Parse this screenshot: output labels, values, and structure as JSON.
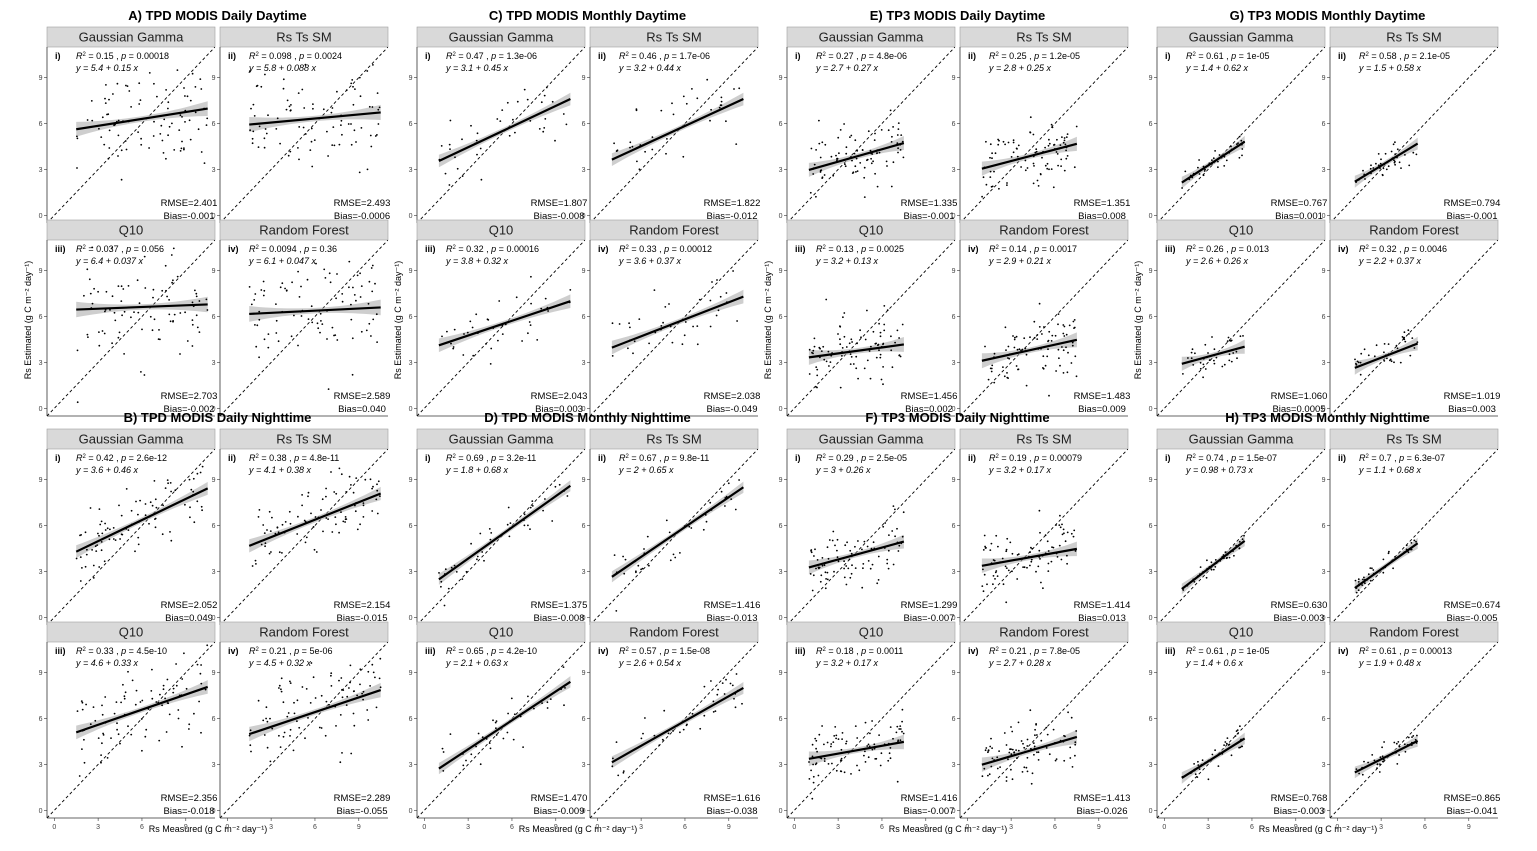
{
  "axis_titles": {
    "x": "Rs Measured (g C m⁻² day⁻¹)",
    "y": "Rs Estimated (g C m⁻² day⁻¹)"
  },
  "chart_data": [
    {
      "type": "scatter",
      "title": "A) TPD MODIS Daily Daytime",
      "xlim": [
        -0.5,
        11
      ],
      "ylim": [
        -0.5,
        11
      ],
      "xticks": [
        0,
        3,
        6,
        9
      ],
      "yticks": [
        0,
        3,
        6,
        9
      ],
      "panels": [
        {
          "label": "i)",
          "model": "Gaussian Gamma",
          "r2": "0.15",
          "p": "0.00018",
          "eq": "y = 5.4 + 0.15 x",
          "intercept": 5.4,
          "slope": 0.15,
          "xrange": [
            1.5,
            10.5
          ],
          "rmse": "RMSE=2.401",
          "bias": "Bias=-0.001"
        },
        {
          "label": "ii)",
          "model": "Rs Ts SM",
          "r2": "0.098",
          "p": "0.0024",
          "eq": "y = 5.8 + 0.088 x",
          "intercept": 5.8,
          "slope": 0.088,
          "xrange": [
            1.5,
            10.5
          ],
          "rmse": "RMSE=2.493",
          "bias": "Bias=-0.0006"
        },
        {
          "label": "iii)",
          "model": "Q10",
          "r2": "0.037",
          "p": "0.056",
          "eq": "y = 6.4 + 0.037 x",
          "intercept": 6.4,
          "slope": 0.037,
          "xrange": [
            1.5,
            10.5
          ],
          "rmse": "RMSE=2.703",
          "bias": "Bias=-0.002"
        },
        {
          "label": "iv)",
          "model": "Random Forest",
          "r2": "0.0094",
          "p": "0.36",
          "eq": "y = 6.1 + 0.047 x",
          "intercept": 6.1,
          "slope": 0.047,
          "xrange": [
            1.5,
            10.5
          ],
          "rmse": "RMSE=2.589",
          "bias": "Bias=0.040"
        }
      ]
    },
    {
      "type": "scatter",
      "title": "B) TPD MODIS Daily Nighttime",
      "xlim": [
        -0.5,
        11
      ],
      "ylim": [
        -0.5,
        11
      ],
      "xticks": [
        0,
        3,
        6,
        9
      ],
      "yticks": [
        0,
        3,
        6,
        9
      ],
      "panels": [
        {
          "label": "i)",
          "model": "Gaussian Gamma",
          "r2": "0.42",
          "p": "2.6e-12",
          "eq": "y = 3.6 + 0.46 x",
          "intercept": 3.6,
          "slope": 0.46,
          "xrange": [
            1.5,
            10.5
          ],
          "rmse": "RMSE=2.052",
          "bias": "Bias=0.049"
        },
        {
          "label": "ii)",
          "model": "Rs Ts SM",
          "r2": "0.38",
          "p": "4.8e-11",
          "eq": "y = 4.1 + 0.38 x",
          "intercept": 4.1,
          "slope": 0.38,
          "xrange": [
            1.5,
            10.5
          ],
          "rmse": "RMSE=2.154",
          "bias": "Bias=-0.015"
        },
        {
          "label": "iii)",
          "model": "Q10",
          "r2": "0.33",
          "p": "4.5e-10",
          "eq": "y = 4.6 + 0.33 x",
          "intercept": 4.6,
          "slope": 0.33,
          "xrange": [
            1.5,
            10.5
          ],
          "rmse": "RMSE=2.356",
          "bias": "Bias=-0.018"
        },
        {
          "label": "iv)",
          "model": "Random Forest",
          "r2": "0.21",
          "p": "5e-06",
          "eq": "y = 4.5 + 0.32 x",
          "intercept": 4.5,
          "slope": 0.32,
          "xrange": [
            1.5,
            10.5
          ],
          "rmse": "RMSE=2.289",
          "bias": "Bias=-0.055"
        }
      ]
    },
    {
      "type": "scatter",
      "title": "C) TPD MODIS Monthly Daytime",
      "xlim": [
        -0.5,
        11
      ],
      "ylim": [
        -0.5,
        11
      ],
      "xticks": [
        0,
        3,
        6,
        9
      ],
      "yticks": [
        0,
        3,
        6,
        9
      ],
      "panels": [
        {
          "label": "i)",
          "model": "Gaussian Gamma",
          "r2": "0.47",
          "p": "1.3e-06",
          "eq": "y = 3.1 + 0.45 x",
          "intercept": 3.1,
          "slope": 0.45,
          "xrange": [
            1,
            10
          ],
          "rmse": "RMSE=1.807",
          "bias": "Bias=-0.008"
        },
        {
          "label": "ii)",
          "model": "Rs Ts SM",
          "r2": "0.46",
          "p": "1.7e-06",
          "eq": "y = 3.2 + 0.44 x",
          "intercept": 3.2,
          "slope": 0.44,
          "xrange": [
            1,
            10
          ],
          "rmse": "RMSE=1.822",
          "bias": "Bias=-0.012"
        },
        {
          "label": "iii)",
          "model": "Q10",
          "r2": "0.32",
          "p": "0.00016",
          "eq": "y = 3.8 + 0.32 x",
          "intercept": 3.8,
          "slope": 0.32,
          "xrange": [
            1,
            10
          ],
          "rmse": "RMSE=2.043",
          "bias": "Bias=0.003"
        },
        {
          "label": "iv)",
          "model": "Random Forest",
          "r2": "0.33",
          "p": "0.00012",
          "eq": "y = 3.6 + 0.37 x",
          "intercept": 3.6,
          "slope": 0.37,
          "xrange": [
            1,
            10
          ],
          "rmse": "RMSE=2.038",
          "bias": "Bias=-0.049"
        }
      ]
    },
    {
      "type": "scatter",
      "title": "D) TPD MODIS Monthly Nighttime",
      "xlim": [
        -0.5,
        11
      ],
      "ylim": [
        -0.5,
        11
      ],
      "xticks": [
        0,
        3,
        6,
        9
      ],
      "yticks": [
        0,
        3,
        6,
        9
      ],
      "panels": [
        {
          "label": "i)",
          "model": "Gaussian Gamma",
          "r2": "0.69",
          "p": "3.2e-11",
          "eq": "y = 1.8 + 0.68 x",
          "intercept": 1.8,
          "slope": 0.68,
          "xrange": [
            1,
            10
          ],
          "rmse": "RMSE=1.375",
          "bias": "Bias=-0.008"
        },
        {
          "label": "ii)",
          "model": "Rs Ts SM",
          "r2": "0.67",
          "p": "9.8e-11",
          "eq": "y = 2 + 0.65 x",
          "intercept": 2.0,
          "slope": 0.65,
          "xrange": [
            1,
            10
          ],
          "rmse": "RMSE=1.416",
          "bias": "Bias=-0.013"
        },
        {
          "label": "iii)",
          "model": "Q10",
          "r2": "0.65",
          "p": "4.2e-10",
          "eq": "y = 2.1 + 0.63 x",
          "intercept": 2.1,
          "slope": 0.63,
          "xrange": [
            1,
            10
          ],
          "rmse": "RMSE=1.470",
          "bias": "Bias=-0.009"
        },
        {
          "label": "iv)",
          "model": "Random Forest",
          "r2": "0.57",
          "p": "1.5e-08",
          "eq": "y = 2.6 + 0.54 x",
          "intercept": 2.6,
          "slope": 0.54,
          "xrange": [
            1,
            10
          ],
          "rmse": "RMSE=1.616",
          "bias": "Bias=-0.038"
        }
      ]
    },
    {
      "type": "scatter",
      "title": "E) TP3 MODIS Daily Daytime",
      "xlim": [
        -0.5,
        11
      ],
      "ylim": [
        -0.5,
        11
      ],
      "xticks": [
        0,
        3,
        6,
        9
      ],
      "yticks": [
        0,
        3,
        6,
        9
      ],
      "panels": [
        {
          "label": "i)",
          "model": "Gaussian Gamma",
          "r2": "0.27",
          "p": "4.8e-06",
          "eq": "y = 2.7 + 0.27 x",
          "intercept": 2.7,
          "slope": 0.27,
          "xrange": [
            1,
            7.5
          ],
          "rmse": "RMSE=1.335",
          "bias": "Bias=-0.001"
        },
        {
          "label": "ii)",
          "model": "Rs Ts SM",
          "r2": "0.25",
          "p": "1.2e-05",
          "eq": "y = 2.8 + 0.25 x",
          "intercept": 2.8,
          "slope": 0.25,
          "xrange": [
            1,
            7.5
          ],
          "rmse": "RMSE=1.351",
          "bias": "Bias=0.008"
        },
        {
          "label": "iii)",
          "model": "Q10",
          "r2": "0.13",
          "p": "0.0025",
          "eq": "y = 3.2 + 0.13 x",
          "intercept": 3.2,
          "slope": 0.13,
          "xrange": [
            1,
            7.5
          ],
          "rmse": "RMSE=1.456",
          "bias": "Bias=0.002"
        },
        {
          "label": "iv)",
          "model": "Random Forest",
          "r2": "0.14",
          "p": "0.0017",
          "eq": "y = 2.9 + 0.21 x",
          "intercept": 2.9,
          "slope": 0.21,
          "xrange": [
            1,
            7.5
          ],
          "rmse": "RMSE=1.483",
          "bias": "Bias=0.009"
        }
      ]
    },
    {
      "type": "scatter",
      "title": "F) TP3 MODIS Daily Nighttime",
      "xlim": [
        -0.5,
        11
      ],
      "ylim": [
        -0.5,
        11
      ],
      "xticks": [
        0,
        3,
        6,
        9
      ],
      "yticks": [
        0,
        3,
        6,
        9
      ],
      "panels": [
        {
          "label": "i)",
          "model": "Gaussian Gamma",
          "r2": "0.29",
          "p": "2.5e-05",
          "eq": "y = 3 + 0.26 x",
          "intercept": 3.0,
          "slope": 0.26,
          "xrange": [
            1,
            7.5
          ],
          "rmse": "RMSE=1.299",
          "bias": "Bias=-0.007"
        },
        {
          "label": "ii)",
          "model": "Rs Ts SM",
          "r2": "0.19",
          "p": "0.00079",
          "eq": "y = 3.2 + 0.17 x",
          "intercept": 3.2,
          "slope": 0.17,
          "xrange": [
            1,
            7.5
          ],
          "rmse": "RMSE=1.414",
          "bias": "Bias=0.013"
        },
        {
          "label": "iii)",
          "model": "Q10",
          "r2": "0.18",
          "p": "0.0011",
          "eq": "y = 3.2 + 0.17 x",
          "intercept": 3.2,
          "slope": 0.17,
          "xrange": [
            1,
            7.5
          ],
          "rmse": "RMSE=1.416",
          "bias": "Bias=-0.007"
        },
        {
          "label": "iv)",
          "model": "Random Forest",
          "r2": "0.21",
          "p": "7.8e-05",
          "eq": "y = 2.7 + 0.28 x",
          "intercept": 2.7,
          "slope": 0.28,
          "xrange": [
            1,
            7.5
          ],
          "rmse": "RMSE=1.413",
          "bias": "Bias=-0.026"
        }
      ]
    },
    {
      "type": "scatter",
      "title": "G) TP3 MODIS Monthly Daytime",
      "xlim": [
        -0.5,
        11
      ],
      "ylim": [
        -0.5,
        11
      ],
      "xticks": [
        0,
        3,
        6,
        9
      ],
      "yticks": [
        0,
        3,
        6,
        9
      ],
      "panels": [
        {
          "label": "i)",
          "model": "Gaussian Gamma",
          "r2": "0.61",
          "p": "1e-05",
          "eq": "y = 1.4 + 0.62 x",
          "intercept": 1.4,
          "slope": 0.62,
          "xrange": [
            1.2,
            5.5
          ],
          "rmse": "RMSE=0.767",
          "bias": "Bias=0.001"
        },
        {
          "label": "ii)",
          "model": "Rs Ts SM",
          "r2": "0.58",
          "p": "2.1e-05",
          "eq": "y = 1.5 + 0.58 x",
          "intercept": 1.5,
          "slope": 0.58,
          "xrange": [
            1.2,
            5.5
          ],
          "rmse": "RMSE=0.794",
          "bias": "Bias=-0.001"
        },
        {
          "label": "iii)",
          "model": "Q10",
          "r2": "0.26",
          "p": "0.013",
          "eq": "y = 2.6 + 0.26 x",
          "intercept": 2.6,
          "slope": 0.26,
          "xrange": [
            1.2,
            5.5
          ],
          "rmse": "RMSE=1.060",
          "bias": "Bias=0.0005"
        },
        {
          "label": "iv)",
          "model": "Random Forest",
          "r2": "0.32",
          "p": "0.0046",
          "eq": "y = 2.2 + 0.37 x",
          "intercept": 2.2,
          "slope": 0.37,
          "xrange": [
            1.2,
            5.5
          ],
          "rmse": "RMSE=1.019",
          "bias": "Bias=0.003"
        }
      ]
    },
    {
      "type": "scatter",
      "title": "H) TP3 MODIS Monthly Nighttime",
      "xlim": [
        -0.5,
        11
      ],
      "ylim": [
        -0.5,
        11
      ],
      "xticks": [
        0,
        3,
        6,
        9
      ],
      "yticks": [
        0,
        3,
        6,
        9
      ],
      "panels": [
        {
          "label": "i)",
          "model": "Gaussian Gamma",
          "r2": "0.74",
          "p": "1.5e-07",
          "eq": "y = 0.98 + 0.73 x",
          "intercept": 0.98,
          "slope": 0.73,
          "xrange": [
            1.2,
            5.5
          ],
          "rmse": "RMSE=0.630",
          "bias": "Bias=-0.003"
        },
        {
          "label": "ii)",
          "model": "Rs Ts SM",
          "r2": "0.7",
          "p": "6.3e-07",
          "eq": "y = 1.1 + 0.68 x",
          "intercept": 1.1,
          "slope": 0.68,
          "xrange": [
            1.2,
            5.5
          ],
          "rmse": "RMSE=0.674",
          "bias": "Bias=-0.005"
        },
        {
          "label": "iii)",
          "model": "Q10",
          "r2": "0.61",
          "p": "1e-05",
          "eq": "y = 1.4 + 0.6 x",
          "intercept": 1.4,
          "slope": 0.6,
          "xrange": [
            1.2,
            5.5
          ],
          "rmse": "RMSE=0.768",
          "bias": "Bias=-0.003"
        },
        {
          "label": "iv)",
          "model": "Random Forest",
          "r2": "0.61",
          "p": "0.00013",
          "eq": "y = 1.9 + 0.48 x",
          "intercept": 1.9,
          "slope": 0.48,
          "xrange": [
            1.2,
            5.5
          ],
          "rmse": "RMSE=0.865",
          "bias": "Bias=-0.041"
        }
      ]
    }
  ]
}
